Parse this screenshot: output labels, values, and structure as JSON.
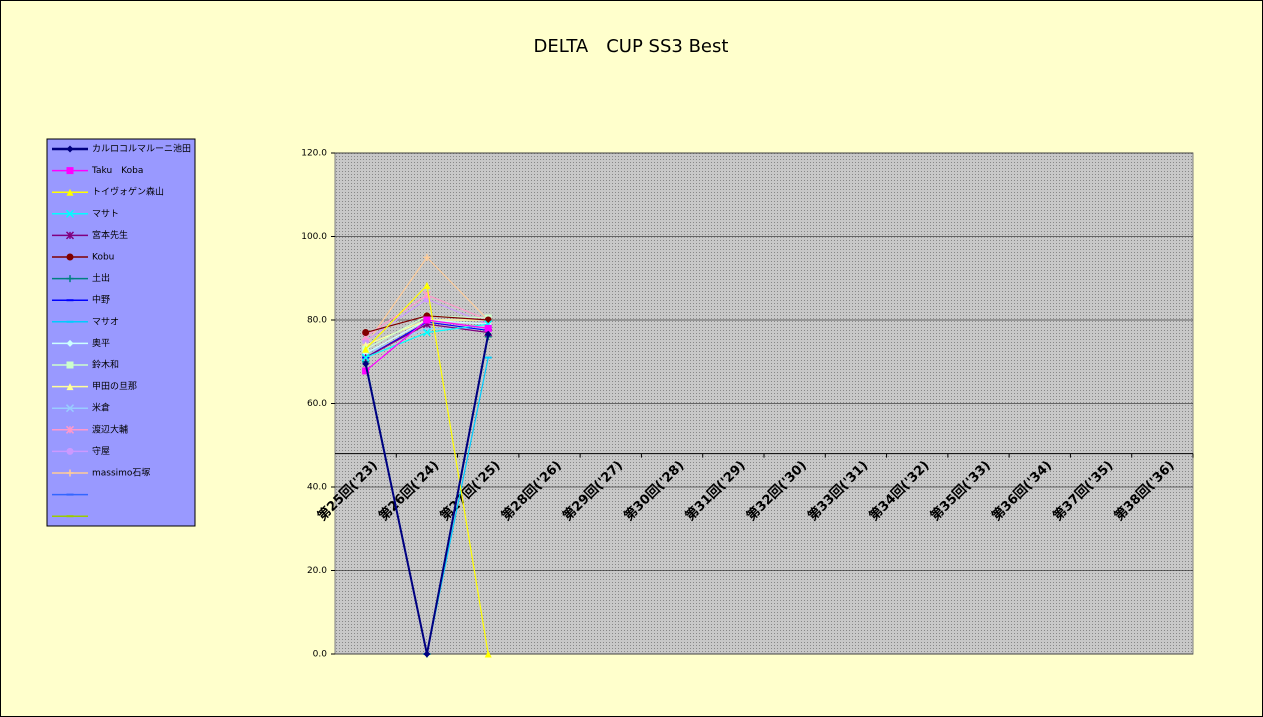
{
  "chart_data": {
    "type": "line",
    "title": "DELTA　CUP SS3 Best",
    "categories": [
      "第25回('23)",
      "第26回('24)",
      "第27回('25)",
      "第28回('26)",
      "第29回('27)",
      "第30回('28)",
      "第31回('29)",
      "第32回('30)",
      "第33回('31)",
      "第34回('32)",
      "第35回('33)",
      "第36回('34)",
      "第37回('35)",
      "第38回('36)"
    ],
    "ylim": [
      0,
      120
    ],
    "yticks": [
      {
        "value": 0,
        "label": "0.0"
      },
      {
        "value": 20,
        "label": "20.0"
      },
      {
        "value": 40,
        "label": "40.0"
      },
      {
        "value": 60,
        "label": "60.0"
      },
      {
        "value": 80,
        "label": "80.0"
      },
      {
        "value": 100,
        "label": "100.0"
      },
      {
        "value": 120,
        "label": "120.0"
      }
    ],
    "x_axis_crosses": 48,
    "grid": true,
    "legend": "left",
    "series": [
      {
        "name": "カルロコルマルーニ池田",
        "color": "#000080",
        "marker": "diamond",
        "values": [
          69.5,
          0,
          76.6,
          null,
          null,
          null,
          null,
          null,
          null,
          null,
          null,
          null,
          null,
          null
        ]
      },
      {
        "name": "Taku　Koba",
        "color": "#ff00ff",
        "marker": "square",
        "values": [
          67.8,
          80,
          78,
          null,
          null,
          null,
          null,
          null,
          null,
          null,
          null,
          null,
          null,
          null
        ]
      },
      {
        "name": "トイヴォゲン森山",
        "color": "#ffff00",
        "marker": "triangle",
        "values": [
          73,
          88.3,
          0,
          null,
          null,
          null,
          null,
          null,
          null,
          null,
          null,
          null,
          null,
          null
        ]
      },
      {
        "name": "マサト",
        "color": "#00ffff",
        "marker": "x",
        "values": [
          71,
          77,
          79,
          null,
          null,
          null,
          null,
          null,
          null,
          null,
          null,
          null,
          null,
          null
        ]
      },
      {
        "name": "宮本先生",
        "color": "#800080",
        "marker": "star",
        "values": [
          71,
          79,
          77,
          null,
          null,
          null,
          null,
          null,
          null,
          null,
          null,
          null,
          null,
          null
        ]
      },
      {
        "name": "Kobu",
        "color": "#800000",
        "marker": "circle",
        "values": [
          77,
          81,
          80,
          null,
          null,
          null,
          null,
          null,
          null,
          null,
          null,
          null,
          null,
          null
        ]
      },
      {
        "name": "土出",
        "color": "#008080",
        "marker": "plus",
        "values": [
          70,
          0,
          76,
          null,
          null,
          null,
          null,
          null,
          null,
          null,
          null,
          null,
          null,
          null
        ]
      },
      {
        "name": "中野",
        "color": "#0000ff",
        "marker": "dash",
        "values": [
          71,
          79.5,
          77.5,
          null,
          null,
          null,
          null,
          null,
          null,
          null,
          null,
          null,
          null,
          null
        ]
      },
      {
        "name": "マサオ",
        "color": "#00ccff",
        "marker": "dash",
        "values": [
          70,
          0,
          71,
          null,
          null,
          null,
          null,
          null,
          null,
          null,
          null,
          null,
          null,
          null
        ]
      },
      {
        "name": "奥平",
        "color": "#ccffff",
        "marker": "diamond",
        "values": [
          72,
          80,
          79,
          null,
          null,
          null,
          null,
          null,
          null,
          null,
          null,
          null,
          null,
          null
        ]
      },
      {
        "name": "鈴木和",
        "color": "#ccffcc",
        "marker": "square",
        "values": [
          73,
          81,
          80.5,
          null,
          null,
          null,
          null,
          null,
          null,
          null,
          null,
          null,
          null,
          null
        ]
      },
      {
        "name": "甲田の旦那",
        "color": "#ffff99",
        "marker": "triangle",
        "values": [
          74,
          80,
          80,
          null,
          null,
          null,
          null,
          null,
          null,
          null,
          null,
          null,
          null,
          null
        ]
      },
      {
        "name": "米倉",
        "color": "#99ccff",
        "marker": "x",
        "values": [
          72,
          78,
          78,
          null,
          null,
          null,
          null,
          null,
          null,
          null,
          null,
          null,
          null,
          null
        ]
      },
      {
        "name": "渡辺大輔",
        "color": "#ff99cc",
        "marker": "star",
        "values": [
          76,
          86,
          80,
          null,
          null,
          null,
          null,
          null,
          null,
          null,
          null,
          null,
          null,
          null
        ]
      },
      {
        "name": "守屋",
        "color": "#cc99ff",
        "marker": "circle",
        "values": [
          75,
          85,
          79,
          null,
          null,
          null,
          null,
          null,
          null,
          null,
          null,
          null,
          null,
          null
        ]
      },
      {
        "name": "massimo石塚",
        "color": "#ffcc99",
        "marker": "plus",
        "values": [
          74,
          95,
          80,
          null,
          null,
          null,
          null,
          null,
          null,
          null,
          null,
          null,
          null,
          null
        ]
      },
      {
        "name": null,
        "color": "#3366ff",
        "marker": "dash",
        "values": [
          null,
          null,
          null,
          null,
          null,
          null,
          null,
          null,
          null,
          null,
          null,
          null,
          null,
          null
        ]
      },
      {
        "name": null,
        "color": "#99cc00",
        "marker": "dash",
        "values": [
          null,
          null,
          null,
          null,
          null,
          null,
          null,
          null,
          null,
          null,
          null,
          null,
          null,
          null
        ]
      }
    ]
  }
}
